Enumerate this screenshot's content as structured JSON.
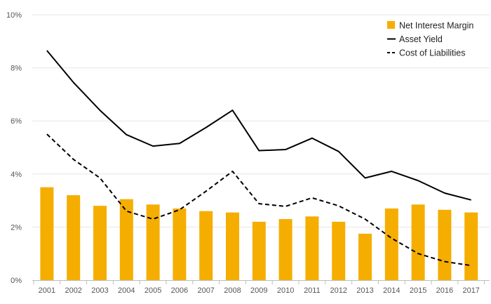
{
  "chart_data": {
    "type": "bar",
    "title": "",
    "xlabel": "",
    "ylabel": "",
    "categories": [
      "2001",
      "2002",
      "2003",
      "2004",
      "2005",
      "2006",
      "2007",
      "2008",
      "2009",
      "2010",
      "2011",
      "2012",
      "2013",
      "2014",
      "2015",
      "2016",
      "2017"
    ],
    "ylim": [
      0,
      10
    ],
    "y_ticks": [
      "0%",
      "2%",
      "4%",
      "6%",
      "8%",
      "10%"
    ],
    "grid": true,
    "legend_position": "top-right",
    "series": [
      {
        "name": "Net Interest Margin",
        "kind": "bar",
        "color": "#F5AE00",
        "values": [
          3.5,
          3.2,
          2.8,
          3.05,
          2.85,
          2.7,
          2.6,
          2.55,
          2.2,
          2.3,
          2.4,
          2.2,
          1.75,
          2.7,
          2.85,
          2.65,
          2.55
        ]
      },
      {
        "name": "Asset Yield",
        "kind": "line",
        "style": "solid",
        "color": "#000000",
        "values": [
          8.65,
          7.45,
          6.4,
          5.48,
          5.05,
          5.15,
          5.75,
          6.4,
          4.88,
          4.92,
          5.35,
          4.85,
          3.85,
          4.1,
          3.75,
          3.28,
          3.02
        ]
      },
      {
        "name": "Cost of Liabilities",
        "kind": "line",
        "style": "dashed",
        "color": "#000000",
        "values": [
          5.5,
          4.55,
          3.85,
          2.6,
          2.3,
          2.65,
          3.35,
          4.1,
          2.88,
          2.78,
          3.1,
          2.8,
          2.3,
          1.58,
          1.0,
          0.7,
          0.55
        ]
      }
    ]
  }
}
